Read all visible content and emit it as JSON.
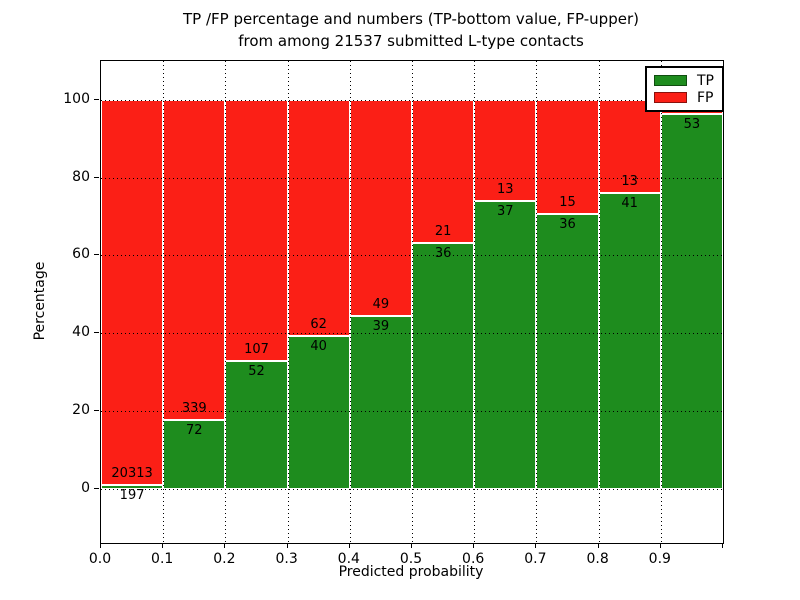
{
  "title": {
    "line1": "TP /FP percentage and numbers (TP-bottom value, FP-upper)",
    "line2": "from among 21537 submitted L-type contacts"
  },
  "x_axis": {
    "label": "Predicted probability",
    "tick_labels": [
      "0.0",
      "0.1",
      "0.2",
      "0.3",
      "0.4",
      "0.5",
      "0.6",
      "0.7",
      "0.8",
      "0.9"
    ]
  },
  "y_axis": {
    "label": "Percentage",
    "tick_labels": [
      "0",
      "20",
      "40",
      "60",
      "80",
      "100"
    ]
  },
  "legend": {
    "items": [
      {
        "label": "TP",
        "color": "#1e8c1e"
      },
      {
        "label": "FP",
        "color": "#fb1f16"
      }
    ]
  },
  "colors": {
    "tp": "#1e8c1e",
    "fp": "#fb1f16",
    "grid": "#000000",
    "text": "#000000"
  },
  "chart_data": {
    "type": "bar",
    "stacked": true,
    "grid": true,
    "legend_position": "upper right",
    "title": "TP /FP percentage and numbers (TP-bottom value, FP-upper) from among 21537 submitted L-type contacts",
    "xlabel": "Predicted probability",
    "ylabel": "Percentage",
    "total_contacts": 21537,
    "bins": [
      [
        0.0,
        0.1
      ],
      [
        0.1,
        0.2
      ],
      [
        0.2,
        0.3
      ],
      [
        0.3,
        0.4
      ],
      [
        0.4,
        0.5
      ],
      [
        0.5,
        0.6
      ],
      [
        0.6,
        0.7
      ],
      [
        0.7,
        0.8
      ],
      [
        0.8,
        0.9
      ],
      [
        0.9,
        1.0
      ]
    ],
    "series": [
      {
        "name": "TP",
        "counts": [
          197,
          72,
          52,
          40,
          39,
          36,
          37,
          36,
          41,
          53
        ]
      },
      {
        "name": "FP",
        "counts": [
          20313,
          339,
          107,
          62,
          49,
          21,
          13,
          15,
          13,
          2
        ]
      }
    ],
    "tp_percent": [
      0.96,
      17.52,
      32.7,
      39.22,
      44.32,
      63.16,
      74.0,
      70.59,
      75.93,
      96.36
    ],
    "xlim": [
      0.0,
      1.0
    ],
    "ylim": [
      -14,
      110
    ],
    "x_ticks": [
      0.0,
      0.1,
      0.2,
      0.3,
      0.4,
      0.5,
      0.6,
      0.7,
      0.8,
      0.9
    ],
    "y_ticks": [
      0,
      20,
      40,
      60,
      80,
      100
    ]
  }
}
